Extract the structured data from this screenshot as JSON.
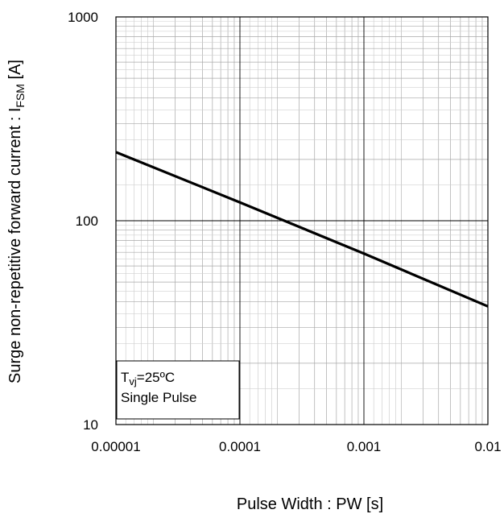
{
  "chart_data": {
    "type": "line",
    "xscale": "log",
    "yscale": "log",
    "xlim": [
      1e-05,
      0.01
    ],
    "ylim": [
      10,
      1000
    ],
    "grid": true,
    "xticks": [
      "0.00001",
      "0.0001",
      "0.001",
      "0.01"
    ],
    "yticks": [
      "10",
      "100",
      "1000"
    ],
    "xlabel": "Pulse Width : PW [s]",
    "ylabel": {
      "main": "Surge non-repetitive forward current : I",
      "sub": "FSM",
      "unit": " [A]"
    },
    "annotation": {
      "line1_main": "T",
      "line1_sub": "vj",
      "line1_rest": "=25ºC",
      "line2": "Single Pulse",
      "placement": "bottom-left"
    },
    "series": [
      {
        "x": [
          1e-05,
          0.0001,
          0.001,
          0.01
        ],
        "y": [
          217,
          123,
          69,
          38
        ],
        "color": "#000000"
      }
    ]
  }
}
